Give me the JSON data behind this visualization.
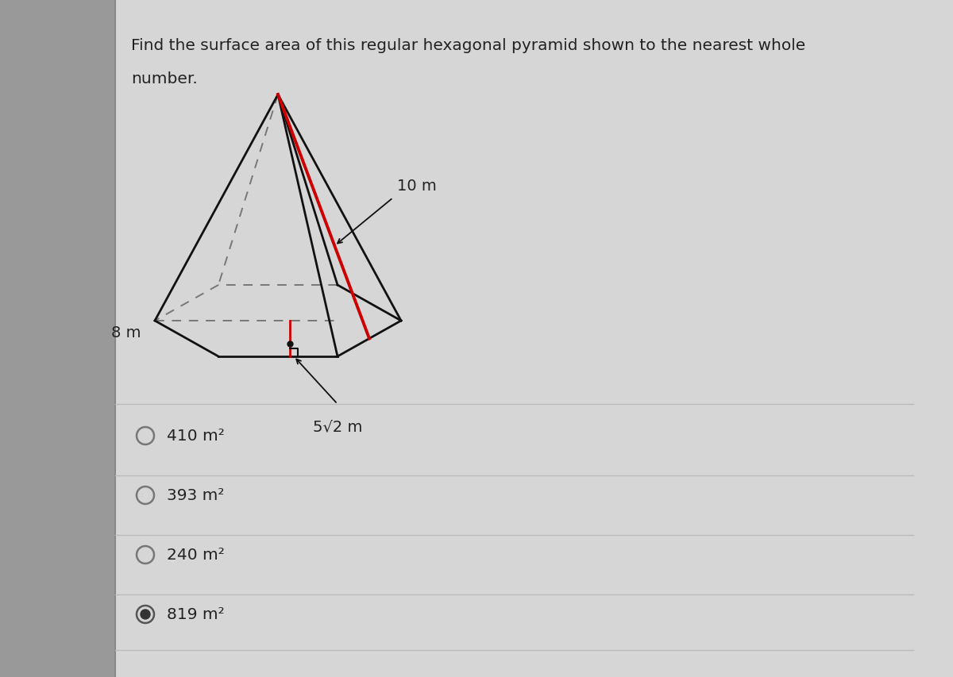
{
  "title_line1": "Find the surface area of this regular hexagonal pyramid shown to the nearest whole",
  "title_line2": "number.",
  "bg_color": "#c8c8c8",
  "content_bg": "#d4d4d4",
  "choices": [
    "410 m²",
    "393 m²",
    "240 m²",
    "819 m²"
  ],
  "selected": 3,
  "label_8m": "8 m",
  "label_10m": "10 m",
  "label_5sqrt2": "5√2 m",
  "text_color": "#222222",
  "pyramid_outline_color": "#111111",
  "pyramid_dashed_color": "#777777",
  "slant_red_color": "#cc0000",
  "radio_color": "#666666",
  "line_color": "#aaaaaa",
  "left_border_color": "#888888"
}
